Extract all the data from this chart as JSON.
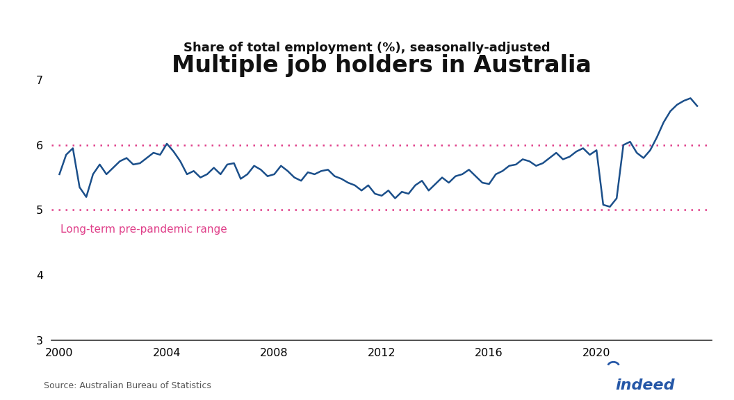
{
  "title": "Multiple job holders in Australia",
  "subtitle": "Share of total employment (%), seasonally-adjusted",
  "line_color": "#1b4f8a",
  "dotted_line_color": "#e0408a",
  "range_label": "Long-term pre-pandemic range",
  "range_upper": 6.0,
  "range_lower": 5.0,
  "ylim": [
    3,
    7
  ],
  "yticks": [
    3,
    4,
    5,
    6,
    7
  ],
  "source": "Source: Australian Bureau of Statistics",
  "background_color": "#ffffff",
  "title_fontsize": 24,
  "subtitle_fontsize": 13,
  "xtick_years": [
    2000,
    2004,
    2008,
    2012,
    2016,
    2020
  ],
  "x": [
    2000.0,
    2000.25,
    2000.5,
    2000.75,
    2001.0,
    2001.25,
    2001.5,
    2001.75,
    2002.0,
    2002.25,
    2002.5,
    2002.75,
    2003.0,
    2003.25,
    2003.5,
    2003.75,
    2004.0,
    2004.25,
    2004.5,
    2004.75,
    2005.0,
    2005.25,
    2005.5,
    2005.75,
    2006.0,
    2006.25,
    2006.5,
    2006.75,
    2007.0,
    2007.25,
    2007.5,
    2007.75,
    2008.0,
    2008.25,
    2008.5,
    2008.75,
    2009.0,
    2009.25,
    2009.5,
    2009.75,
    2010.0,
    2010.25,
    2010.5,
    2010.75,
    2011.0,
    2011.25,
    2011.5,
    2011.75,
    2012.0,
    2012.25,
    2012.5,
    2012.75,
    2013.0,
    2013.25,
    2013.5,
    2013.75,
    2014.0,
    2014.25,
    2014.5,
    2014.75,
    2015.0,
    2015.25,
    2015.5,
    2015.75,
    2016.0,
    2016.25,
    2016.5,
    2016.75,
    2017.0,
    2017.25,
    2017.5,
    2017.75,
    2018.0,
    2018.25,
    2018.5,
    2018.75,
    2019.0,
    2019.25,
    2019.5,
    2019.75,
    2020.0,
    2020.25,
    2020.5,
    2020.75,
    2021.0,
    2021.25,
    2021.5,
    2021.75,
    2022.0,
    2022.25,
    2022.5,
    2022.75,
    2023.0,
    2023.25,
    2023.5,
    2023.75
  ],
  "y": [
    5.55,
    5.85,
    5.95,
    5.35,
    5.2,
    5.55,
    5.7,
    5.55,
    5.65,
    5.75,
    5.8,
    5.7,
    5.72,
    5.8,
    5.88,
    5.85,
    6.02,
    5.9,
    5.75,
    5.55,
    5.6,
    5.5,
    5.55,
    5.65,
    5.55,
    5.7,
    5.72,
    5.48,
    5.55,
    5.68,
    5.62,
    5.52,
    5.55,
    5.68,
    5.6,
    5.5,
    5.45,
    5.58,
    5.55,
    5.6,
    5.62,
    5.52,
    5.48,
    5.42,
    5.38,
    5.3,
    5.38,
    5.25,
    5.22,
    5.3,
    5.18,
    5.28,
    5.25,
    5.38,
    5.45,
    5.3,
    5.4,
    5.5,
    5.42,
    5.52,
    5.55,
    5.62,
    5.52,
    5.42,
    5.4,
    5.55,
    5.6,
    5.68,
    5.7,
    5.78,
    5.75,
    5.68,
    5.72,
    5.8,
    5.88,
    5.78,
    5.82,
    5.9,
    5.95,
    5.85,
    5.92,
    5.08,
    5.05,
    5.18,
    6.0,
    6.05,
    5.88,
    5.8,
    5.92,
    6.12,
    6.35,
    6.52,
    6.62,
    6.68,
    6.72,
    6.6
  ]
}
